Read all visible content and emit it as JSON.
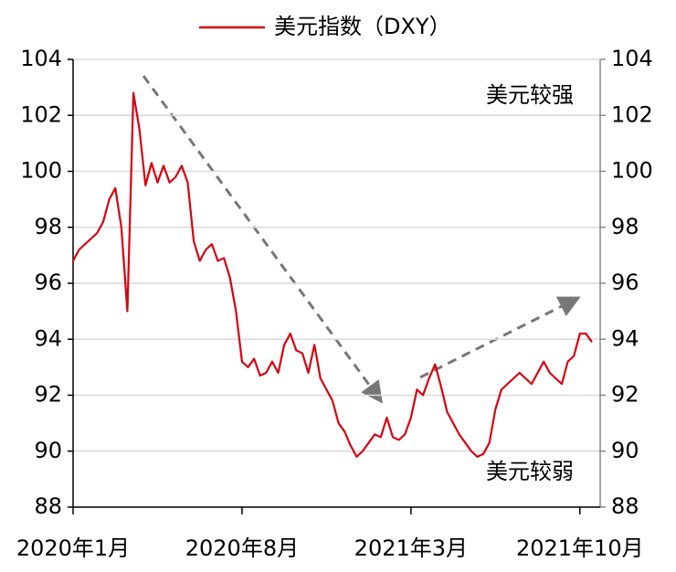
{
  "chart_data": {
    "type": "line",
    "legend": "top",
    "categories": [
      "2020年1月",
      null,
      null,
      null,
      null,
      null,
      null,
      null,
      null,
      null,
      null,
      null,
      null,
      null,
      null,
      null,
      null,
      null,
      null,
      null,
      null,
      null,
      null,
      null,
      null,
      null,
      null,
      null,
      "2020年8月",
      null,
      null,
      null,
      null,
      null,
      null,
      null,
      null,
      null,
      null,
      null,
      null,
      null,
      null,
      null,
      null,
      null,
      null,
      null,
      null,
      null,
      null,
      null,
      null,
      null,
      null,
      null,
      "2021年3月",
      null,
      null,
      null,
      null,
      null,
      null,
      null,
      null,
      null,
      null,
      null,
      null,
      null,
      null,
      null,
      null,
      null,
      null,
      null,
      null,
      null,
      null,
      null,
      null,
      null,
      null,
      null,
      "2021年10月",
      null,
      null
    ],
    "series": [
      {
        "name": "美元指数（DXY）",
        "color": "#d7000f",
        "values": [
          96.8,
          97.2,
          97.4,
          97.6,
          97.8,
          98.2,
          99.0,
          99.4,
          98.0,
          95.0,
          102.8,
          101.5,
          99.5,
          100.3,
          99.6,
          100.2,
          99.6,
          99.8,
          100.2,
          99.6,
          97.5,
          96.8,
          97.2,
          97.4,
          96.8,
          96.9,
          96.2,
          95.0,
          93.2,
          93.0,
          93.3,
          92.7,
          92.8,
          93.2,
          92.8,
          93.8,
          94.2,
          93.6,
          93.5,
          92.8,
          93.8,
          92.6,
          92.2,
          91.8,
          91.0,
          90.7,
          90.2,
          89.8,
          90.0,
          90.3,
          90.6,
          90.5,
          91.2,
          90.5,
          90.4,
          90.6,
          91.2,
          92.2,
          92.0,
          92.6,
          93.1,
          92.3,
          91.4,
          91.0,
          90.6,
          90.3,
          90.0,
          89.8,
          89.9,
          90.3,
          91.5,
          92.2,
          92.4,
          92.6,
          92.8,
          92.6,
          92.4,
          92.8,
          93.2,
          92.8,
          92.6,
          92.4,
          93.2,
          93.4,
          94.2,
          94.2,
          93.9
        ]
      }
    ],
    "ylim": [
      88,
      104
    ],
    "yticks": [
      88,
      90,
      92,
      94,
      96,
      98,
      100,
      102,
      104
    ],
    "y2lim": [
      88,
      104
    ],
    "y2ticks": [
      88,
      90,
      92,
      94,
      96,
      98,
      100,
      102,
      104
    ],
    "grid": true,
    "annotations": [
      "美元较强",
      "美元较弱"
    ]
  }
}
